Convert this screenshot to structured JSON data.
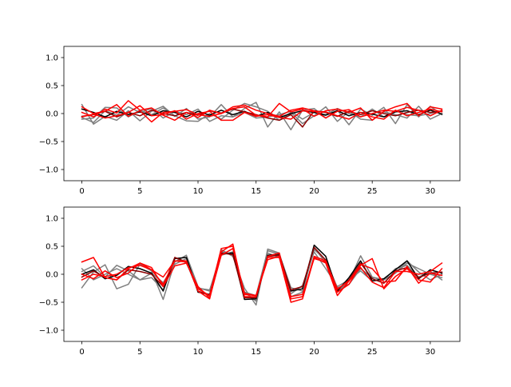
{
  "chart_data": [
    {
      "type": "line",
      "title": "",
      "xlabel": "",
      "ylabel": "",
      "xlim": [
        -1.55,
        32.55
      ],
      "ylim": [
        -1.2,
        1.2
      ],
      "xticks": [
        0,
        5,
        10,
        15,
        20,
        25,
        30
      ],
      "xtick_labels": [
        "0",
        "5",
        "10",
        "15",
        "20",
        "25",
        "30"
      ],
      "yticks": [
        -1.0,
        -0.5,
        0.0,
        0.5,
        1.0
      ],
      "ytick_labels": [
        "−1.0",
        "−0.5",
        "0.0",
        "0.5",
        "1.0"
      ],
      "grid": false,
      "legend": "none",
      "x": [
        0,
        1,
        2,
        3,
        4,
        5,
        6,
        7,
        8,
        9,
        10,
        11,
        12,
        13,
        14,
        15,
        16,
        17,
        18,
        19,
        20,
        21,
        22,
        23,
        24,
        25,
        26,
        27,
        28,
        29,
        30,
        31
      ],
      "series": [
        {
          "color": "#7f7f7f",
          "values": [
            0.16,
            -0.19,
            -0.05,
            -0.12,
            0.05,
            -0.13,
            0.04,
            0.13,
            -0.05,
            0.09,
            -0.1,
            -0.06,
            0.16,
            -0.06,
            0.09,
            0.2,
            -0.24,
            0.03,
            -0.29,
            0.06,
            0.09,
            -0.08,
            0.06,
            -0.2,
            0.08,
            -0.03,
            0.11,
            -0.18,
            0.16,
            -0.06,
            0.13,
            -0.02
          ]
        },
        {
          "color": "#7f7f7f",
          "values": [
            -0.1,
            -0.08,
            0.11,
            0.1,
            -0.06,
            0.06,
            -0.02,
            0.1,
            -0.04,
            -0.13,
            -0.14,
            0.0,
            -0.1,
            0.06,
            0.18,
            0.12,
            0.04,
            -0.12,
            0.02,
            -0.18,
            -0.04,
            0.12,
            -0.14,
            0.04,
            -0.1,
            -0.12,
            0.03,
            -0.02,
            -0.08,
            0.13,
            -0.1,
            0.0
          ]
        },
        {
          "color": "#7f7f7f",
          "values": [
            -0.07,
            -0.16,
            0.05,
            -0.03,
            0.12,
            0.02,
            0.09,
            -0.08,
            0.04,
            -0.02,
            0.08,
            -0.14,
            -0.04,
            -0.06,
            0.02,
            -0.08,
            -0.06,
            -0.02,
            0.04,
            -0.1,
            0.02,
            -0.02,
            0.09,
            0.0,
            -0.06,
            0.08,
            -0.06,
            0.05,
            -0.02,
            -0.04,
            0.0,
            0.05
          ]
        },
        {
          "color": "#000000",
          "values": [
            0.08,
            0.02,
            -0.06,
            0.04,
            -0.02,
            0.03,
            -0.04,
            0.05,
            0.02,
            -0.06,
            0.04,
            -0.03,
            0.06,
            -0.02,
            0.04,
            -0.05,
            0.02,
            -0.07,
            0.0,
            0.05,
            0.02,
            -0.03,
            0.05,
            -0.04,
            0.02,
            -0.01,
            -0.06,
            0.03,
            0.05,
            -0.02,
            0.06,
            -0.01
          ]
        },
        {
          "color": "#8b0000",
          "values": [
            -0.05,
            -0.02,
            0.04,
            -0.06,
            0.02,
            -0.04,
            0.06,
            0.0,
            -0.04,
            0.02,
            -0.03,
            0.05,
            0.01,
            0.08,
            0.03,
            -0.02,
            -0.08,
            -0.12,
            -0.02,
            -0.24,
            0.05,
            0.02,
            -0.05,
            0.04,
            -0.02,
            0.05,
            0.0,
            -0.04,
            0.02,
            0.06,
            0.02,
            0.04
          ]
        },
        {
          "color": "#ff0000",
          "values": [
            0.12,
            0.0,
            0.04,
            0.16,
            -0.05,
            0.05,
            -0.15,
            0.02,
            0.04,
            0.07,
            -0.02,
            -0.05,
            0.0,
            0.09,
            0.12,
            -0.03,
            -0.06,
            0.18,
            0.03,
            0.08,
            -0.05,
            0.05,
            0.08,
            0.02,
            0.1,
            -0.12,
            0.04,
            0.12,
            0.18,
            -0.04,
            0.12,
            0.08
          ]
        },
        {
          "color": "#ff0000",
          "values": [
            0.02,
            -0.06,
            0.08,
            0.01,
            0.23,
            0.06,
            0.1,
            -0.03,
            -0.12,
            0.02,
            -0.07,
            0.06,
            0.0,
            0.12,
            0.15,
            0.06,
            0.0,
            -0.05,
            0.06,
            0.1,
            0.05,
            -0.08,
            0.04,
            0.07,
            -0.06,
            0.0,
            0.06,
            0.04,
            0.11,
            0.06,
            -0.04,
            0.06
          ]
        },
        {
          "color": "#ff0000",
          "values": [
            -0.06,
            -0.01,
            -0.08,
            -0.04,
            0.02,
            0.14,
            -0.04,
            -0.02,
            0.05,
            -0.1,
            0.0,
            0.04,
            -0.12,
            -0.12,
            0.02,
            -0.05,
            -0.02,
            -0.07,
            -0.1,
            0.05,
            0.04,
            0.03,
            -0.04,
            -0.1,
            0.02,
            -0.06,
            -0.1,
            0.06,
            -0.04,
            0.02,
            0.08,
            0.03
          ]
        }
      ]
    },
    {
      "type": "line",
      "title": "",
      "xlabel": "",
      "ylabel": "",
      "xlim": [
        -1.55,
        32.55
      ],
      "ylim": [
        -1.2,
        1.2
      ],
      "xticks": [
        0,
        5,
        10,
        15,
        20,
        25,
        30
      ],
      "xtick_labels": [
        "0",
        "5",
        "10",
        "15",
        "20",
        "25",
        "30"
      ],
      "yticks": [
        -1.0,
        -0.5,
        0.0,
        0.5,
        1.0
      ],
      "ytick_labels": [
        "−1.0",
        "−0.5",
        "0.0",
        "0.5",
        "1.0"
      ],
      "grid": false,
      "legend": "none",
      "x": [
        0,
        1,
        2,
        3,
        4,
        5,
        6,
        7,
        8,
        9,
        10,
        11,
        12,
        13,
        14,
        15,
        16,
        17,
        18,
        19,
        20,
        21,
        22,
        23,
        24,
        25,
        26,
        27,
        28,
        29,
        30,
        31
      ],
      "series": [
        {
          "color": "#7f7f7f",
          "values": [
            -0.24,
            0.04,
            0.17,
            -0.26,
            -0.18,
            0.18,
            0.06,
            -0.45,
            0.22,
            0.34,
            -0.22,
            -0.42,
            0.44,
            0.32,
            -0.25,
            -0.55,
            0.45,
            0.38,
            -0.4,
            -0.32,
            0.48,
            0.2,
            -0.32,
            -0.12,
            0.33,
            -0.05,
            -0.1,
            0.02,
            0.24,
            0.04,
            -0.1,
            0.0
          ]
        },
        {
          "color": "#7f7f7f",
          "values": [
            0.1,
            -0.1,
            0.0,
            0.1,
            0.0,
            -0.1,
            -0.06,
            -0.28,
            0.3,
            0.2,
            -0.25,
            -0.28,
            0.34,
            0.4,
            -0.32,
            -0.48,
            0.38,
            0.3,
            -0.35,
            -0.2,
            0.4,
            0.1,
            -0.22,
            -0.1,
            0.06,
            -0.12,
            -0.1,
            0.1,
            0.16,
            -0.05,
            0.05,
            -0.1
          ]
        },
        {
          "color": "#7f7f7f",
          "values": [
            0.05,
            0.15,
            -0.05,
            0.16,
            0.06,
            -0.1,
            0.02,
            -0.15,
            0.18,
            0.28,
            -0.24,
            -0.3,
            0.4,
            0.36,
            -0.32,
            -0.38,
            0.42,
            0.36,
            -0.24,
            -0.3,
            0.44,
            0.26,
            -0.24,
            -0.18,
            0.1,
            -0.06,
            -0.1,
            0.02,
            0.2,
            0.1,
            0.0,
            -0.06
          ]
        },
        {
          "color": "#000000",
          "values": [
            0.0,
            0.08,
            -0.08,
            -0.02,
            0.14,
            0.1,
            0.02,
            -0.3,
            0.28,
            0.3,
            -0.32,
            -0.36,
            0.36,
            0.38,
            -0.45,
            -0.44,
            0.34,
            0.36,
            -0.3,
            -0.26,
            0.52,
            0.32,
            -0.3,
            -0.06,
            0.24,
            -0.12,
            -0.08,
            0.08,
            0.24,
            -0.08,
            0.08,
            0.02
          ]
        },
        {
          "color": "#8b0000",
          "values": [
            -0.05,
            0.06,
            -0.06,
            -0.1,
            0.08,
            0.05,
            0.0,
            -0.22,
            0.3,
            0.22,
            -0.3,
            -0.38,
            0.38,
            0.35,
            -0.42,
            -0.42,
            0.32,
            0.34,
            -0.28,
            -0.22,
            0.48,
            0.25,
            -0.28,
            -0.1,
            0.2,
            -0.08,
            -0.16,
            0.06,
            0.12,
            -0.06,
            0.02,
            0.04
          ]
        },
        {
          "color": "#ff0000",
          "values": [
            0.22,
            0.3,
            -0.06,
            -0.1,
            0.1,
            0.2,
            0.08,
            -0.05,
            0.24,
            0.24,
            -0.3,
            -0.44,
            0.4,
            0.54,
            -0.4,
            -0.4,
            0.3,
            0.3,
            -0.5,
            -0.44,
            0.3,
            0.2,
            -0.38,
            -0.12,
            0.12,
            -0.14,
            -0.24,
            0.05,
            0.05,
            0.0,
            0.05,
            0.2
          ]
        },
        {
          "color": "#ff0000",
          "values": [
            -0.1,
            0.0,
            -0.04,
            0.0,
            0.12,
            0.16,
            0.08,
            -0.18,
            0.24,
            0.22,
            -0.26,
            -0.38,
            0.46,
            0.5,
            -0.36,
            -0.38,
            0.32,
            0.38,
            -0.44,
            -0.4,
            0.32,
            0.24,
            -0.32,
            -0.18,
            0.16,
            0.28,
            -0.26,
            -0.04,
            0.1,
            -0.1,
            -0.14,
            0.1
          ]
        },
        {
          "color": "#ff0000",
          "values": [
            0.0,
            -0.08,
            0.06,
            -0.06,
            0.02,
            0.2,
            0.12,
            -0.22,
            0.15,
            0.2,
            -0.22,
            -0.42,
            0.34,
            0.46,
            -0.34,
            -0.38,
            0.26,
            0.32,
            -0.4,
            -0.36,
            0.28,
            0.22,
            -0.26,
            -0.12,
            0.18,
            0.1,
            -0.14,
            -0.12,
            0.14,
            -0.16,
            0.02,
            -0.02
          ]
        }
      ]
    }
  ]
}
